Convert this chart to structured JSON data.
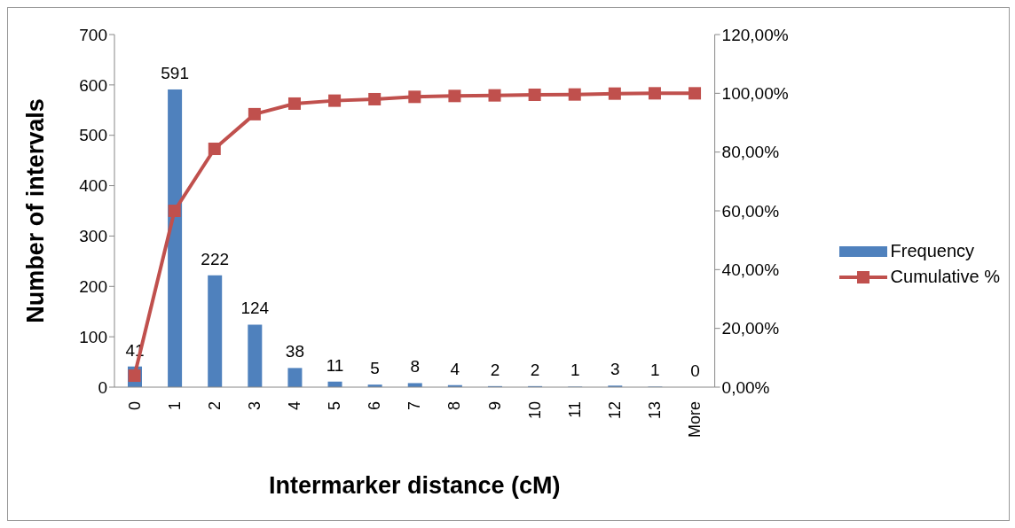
{
  "chart_data": {
    "type": "bar",
    "xlabel": "Intermarker distance (cM)",
    "ylabel": "Number of intervals",
    "categories": [
      "0",
      "1",
      "2",
      "3",
      "4",
      "5",
      "6",
      "7",
      "8",
      "9",
      "10",
      "11",
      "12",
      "13",
      "More"
    ],
    "series": [
      {
        "name": "Frequency",
        "color": "#4f81bd",
        "values": [
          41,
          591,
          222,
          124,
          38,
          11,
          5,
          8,
          4,
          2,
          2,
          1,
          3,
          1,
          0
        ],
        "value_labels": [
          "41",
          "591",
          "222",
          "124",
          "38",
          "11",
          "5",
          "8",
          "4",
          "2",
          "2",
          "1",
          "3",
          "1",
          "0"
        ]
      },
      {
        "name": "Cumulative %",
        "type": "line",
        "axis": "y2",
        "color": "#c0504d",
        "marker": "square",
        "values": [
          3.9,
          60.0,
          81.1,
          92.9,
          96.5,
          97.5,
          98.0,
          98.8,
          99.1,
          99.3,
          99.5,
          99.6,
          99.9,
          100,
          100
        ]
      }
    ],
    "ylim": [
      0,
      700
    ],
    "yticks": [
      0,
      100,
      200,
      300,
      400,
      500,
      600,
      700
    ],
    "y2lim": [
      0,
      120
    ],
    "y2ticks": [
      {
        "value": 0,
        "label": "0,00%"
      },
      {
        "value": 20,
        "label": "20,00%"
      },
      {
        "value": 40,
        "label": "40,00%"
      },
      {
        "value": 60,
        "label": "60,00%"
      },
      {
        "value": 80,
        "label": "80,00%"
      },
      {
        "value": 100,
        "label": "100,00%"
      },
      {
        "value": 120,
        "label": "120,00%"
      }
    ],
    "legend": "right",
    "grid": false
  }
}
